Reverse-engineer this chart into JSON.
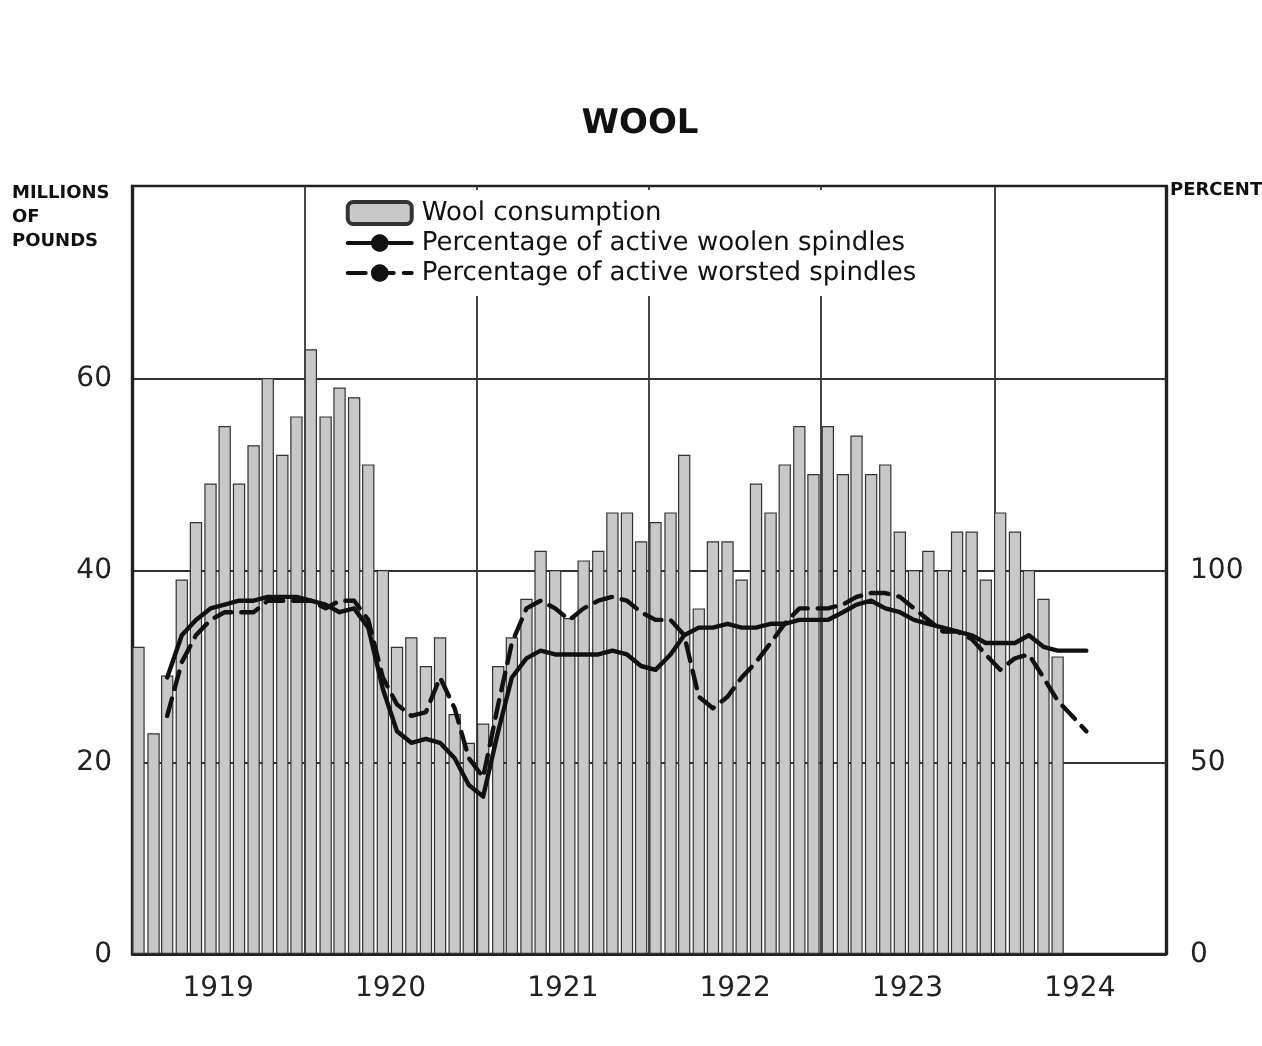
{
  "chart_data": {
    "type": "bar",
    "title": "WOOL",
    "ylabel": "MILLIONS OF POUNDS",
    "y2label": "PERCENT",
    "xlim": [
      "1919-01",
      "1925-01"
    ],
    "xticks": [
      {
        "value": "1919-07",
        "label": "1919"
      },
      {
        "value": "1920-01",
        "label": null
      },
      {
        "value": "1920-07",
        "label": "1920"
      },
      {
        "value": "1921-01",
        "label": null
      },
      {
        "value": "1921-07",
        "label": "1921"
      },
      {
        "value": "1922-01",
        "label": null
      },
      {
        "value": "1922-07",
        "label": "1922"
      },
      {
        "value": "1923-01",
        "label": null
      },
      {
        "value": "1923-07",
        "label": "1923"
      },
      {
        "value": "1924-01",
        "label": null
      },
      {
        "value": "1924-07",
        "label": "1924"
      }
    ],
    "ylim": [
      0,
      80
    ],
    "yticks": [
      0,
      20,
      40,
      60
    ],
    "y2lim": [
      0,
      200
    ],
    "y2ticks": [
      0,
      50,
      100
    ],
    "grid": true,
    "legend": "top",
    "marker": "none",
    "series": [
      {
        "name": "Wool consumption",
        "color": "#c8c8c8",
        "x": [
          "1919-01-15",
          "1919-02-15",
          "1919-03-15",
          "1919-04-15",
          "1919-05-15",
          "1919-06-15",
          "1919-07-15",
          "1919-08-15",
          "1919-09-15",
          "1919-10-15",
          "1919-11-15",
          "1919-12-15",
          "1920-01-15",
          "1920-02-15",
          "1920-03-15",
          "1920-04-15",
          "1920-05-15",
          "1920-06-15",
          "1920-07-15",
          "1920-08-15",
          "1920-09-15",
          "1920-10-15",
          "1920-11-15",
          "1920-12-15",
          "1921-01-15",
          "1921-02-15",
          "1921-03-15",
          "1921-04-15",
          "1921-05-15",
          "1921-06-15",
          "1921-07-15",
          "1921-08-15",
          "1921-09-15",
          "1921-10-15",
          "1921-11-15",
          "1921-12-15",
          "1922-01-15",
          "1922-02-15",
          "1922-03-15",
          "1922-04-15",
          "1922-05-15",
          "1922-06-15",
          "1922-07-15",
          "1922-08-15",
          "1922-09-15",
          "1922-10-15",
          "1922-11-15",
          "1922-12-15",
          "1923-01-15",
          "1923-02-15",
          "1923-03-15",
          "1923-04-15",
          "1923-05-15",
          "1923-06-15",
          "1923-07-15",
          "1923-08-15",
          "1923-09-15",
          "1923-10-15",
          "1923-11-15",
          "1923-12-15",
          "1924-01-15",
          "1924-02-15",
          "1924-03-15",
          "1924-04-15",
          "1924-05-15"
        ],
        "values": [
          32,
          23,
          29,
          39,
          45,
          49,
          55,
          49,
          53,
          60,
          52,
          56,
          63,
          56,
          59,
          58,
          51,
          40,
          32,
          33,
          30,
          33,
          25,
          22,
          24,
          30,
          33,
          37,
          42,
          40,
          35,
          41,
          42,
          46,
          46,
          43,
          45,
          46,
          52,
          36,
          43,
          43,
          39,
          49,
          46,
          51,
          55,
          50,
          55,
          50,
          54,
          50,
          51,
          44,
          40,
          42,
          40,
          44,
          44,
          39,
          46,
          44,
          40,
          37,
          31
        ]
      },
      {
        "name": "Percentage of active woolen spindles",
        "type": "line",
        "axis": "y2",
        "color": "#111111",
        "line_style": "solid",
        "x": [
          "1919-03-15",
          "1919-04-15",
          "1919-05-15",
          "1919-06-15",
          "1919-07-15",
          "1919-08-15",
          "1919-09-15",
          "1919-10-15",
          "1919-11-15",
          "1919-12-15",
          "1920-01-15",
          "1920-02-15",
          "1920-03-15",
          "1920-04-15",
          "1920-05-15",
          "1920-06-15",
          "1920-07-15",
          "1920-08-15",
          "1920-09-15",
          "1920-10-15",
          "1920-11-15",
          "1920-12-15",
          "1921-01-15",
          "1921-02-15",
          "1921-03-15",
          "1921-04-15",
          "1921-05-15",
          "1921-06-15",
          "1921-07-15",
          "1921-08-15",
          "1921-09-15",
          "1921-10-15",
          "1921-11-15",
          "1921-12-15",
          "1922-01-15",
          "1922-02-15",
          "1922-03-15",
          "1922-04-15",
          "1922-05-15",
          "1922-06-15",
          "1922-07-15",
          "1922-08-15",
          "1922-09-15",
          "1922-10-15",
          "1922-11-15",
          "1922-12-15",
          "1923-01-15",
          "1923-02-15",
          "1923-03-15",
          "1923-04-15",
          "1923-05-15",
          "1923-06-15",
          "1923-07-15",
          "1923-08-15",
          "1923-09-15",
          "1923-10-15",
          "1923-11-15",
          "1923-12-15",
          "1924-01-15",
          "1924-02-15",
          "1924-03-15",
          "1924-04-15",
          "1924-05-15",
          "1924-06-15",
          "1924-07-15"
        ],
        "values": [
          72,
          83,
          87,
          90,
          91,
          92,
          92,
          93,
          93,
          93,
          92,
          91,
          89,
          90,
          85,
          69,
          58,
          55,
          56,
          55,
          51,
          44,
          41,
          58,
          72,
          77,
          79,
          78,
          78,
          78,
          78,
          79,
          78,
          75,
          74,
          78,
          83,
          85,
          85,
          86,
          85,
          85,
          86,
          86,
          87,
          87,
          87,
          89,
          91,
          92,
          90,
          89,
          87,
          86,
          85,
          84,
          83,
          81,
          81,
          81,
          83,
          80,
          79,
          79,
          79
        ]
      },
      {
        "name": "Percentage of active worsted spindles",
        "type": "line",
        "axis": "y2",
        "color": "#111111",
        "line_style": "dashed",
        "x": [
          "1919-03-15",
          "1919-04-15",
          "1919-05-15",
          "1919-06-15",
          "1919-07-15",
          "1919-08-15",
          "1919-09-15",
          "1919-10-15",
          "1919-11-15",
          "1919-12-15",
          "1920-01-15",
          "1920-02-15",
          "1920-03-15",
          "1920-04-15",
          "1920-05-15",
          "1920-06-15",
          "1920-07-15",
          "1920-08-15",
          "1920-09-15",
          "1920-10-15",
          "1920-11-15",
          "1920-12-15",
          "1921-01-15",
          "1921-02-15",
          "1921-03-15",
          "1921-04-15",
          "1921-05-15",
          "1921-06-15",
          "1921-07-15",
          "1921-08-15",
          "1921-09-15",
          "1921-10-15",
          "1921-11-15",
          "1921-12-15",
          "1922-01-15",
          "1922-02-15",
          "1922-03-15",
          "1922-04-15",
          "1922-05-15",
          "1922-06-15",
          "1922-07-15",
          "1922-08-15",
          "1922-09-15",
          "1922-10-15",
          "1922-11-15",
          "1922-12-15",
          "1923-01-15",
          "1923-02-15",
          "1923-03-15",
          "1923-04-15",
          "1923-05-15",
          "1923-06-15",
          "1923-07-15",
          "1923-08-15",
          "1923-09-15",
          "1923-10-15",
          "1923-11-15",
          "1923-12-15",
          "1924-01-15",
          "1924-02-15",
          "1924-03-15",
          "1924-04-15",
          "1924-05-15",
          "1924-06-15",
          "1924-07-15"
        ],
        "values": [
          62,
          76,
          83,
          87,
          89,
          89,
          89,
          92,
          92,
          92,
          92,
          90,
          92,
          92,
          87,
          72,
          65,
          62,
          63,
          72,
          64,
          51,
          46,
          65,
          81,
          90,
          92,
          90,
          87,
          90,
          92,
          93,
          92,
          89,
          87,
          87,
          83,
          67,
          64,
          67,
          72,
          76,
          81,
          86,
          90,
          90,
          90,
          91,
          93,
          94,
          94,
          93,
          90,
          87,
          84,
          84,
          82,
          78,
          74,
          77,
          78,
          72,
          66,
          62,
          58
        ]
      }
    ]
  }
}
